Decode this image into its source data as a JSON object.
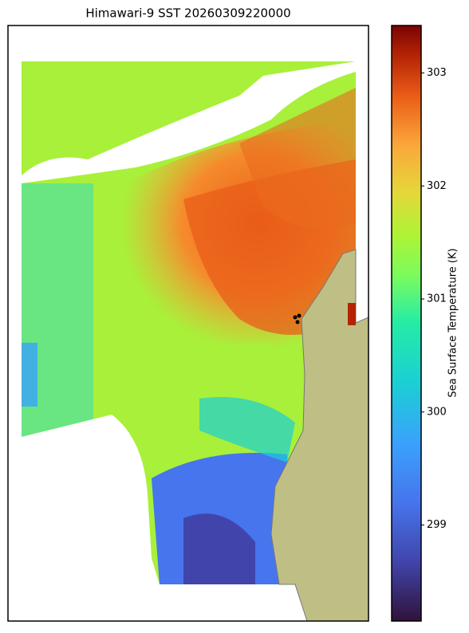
{
  "map": {
    "title": "Himawari-9 SST 20260309220000",
    "colorbar": {
      "label": "Sea Surface Temperature (K)",
      "lim": [
        298.15,
        303.42
      ],
      "ticks": [
        299,
        300,
        301,
        302,
        303
      ]
    }
  }
}
